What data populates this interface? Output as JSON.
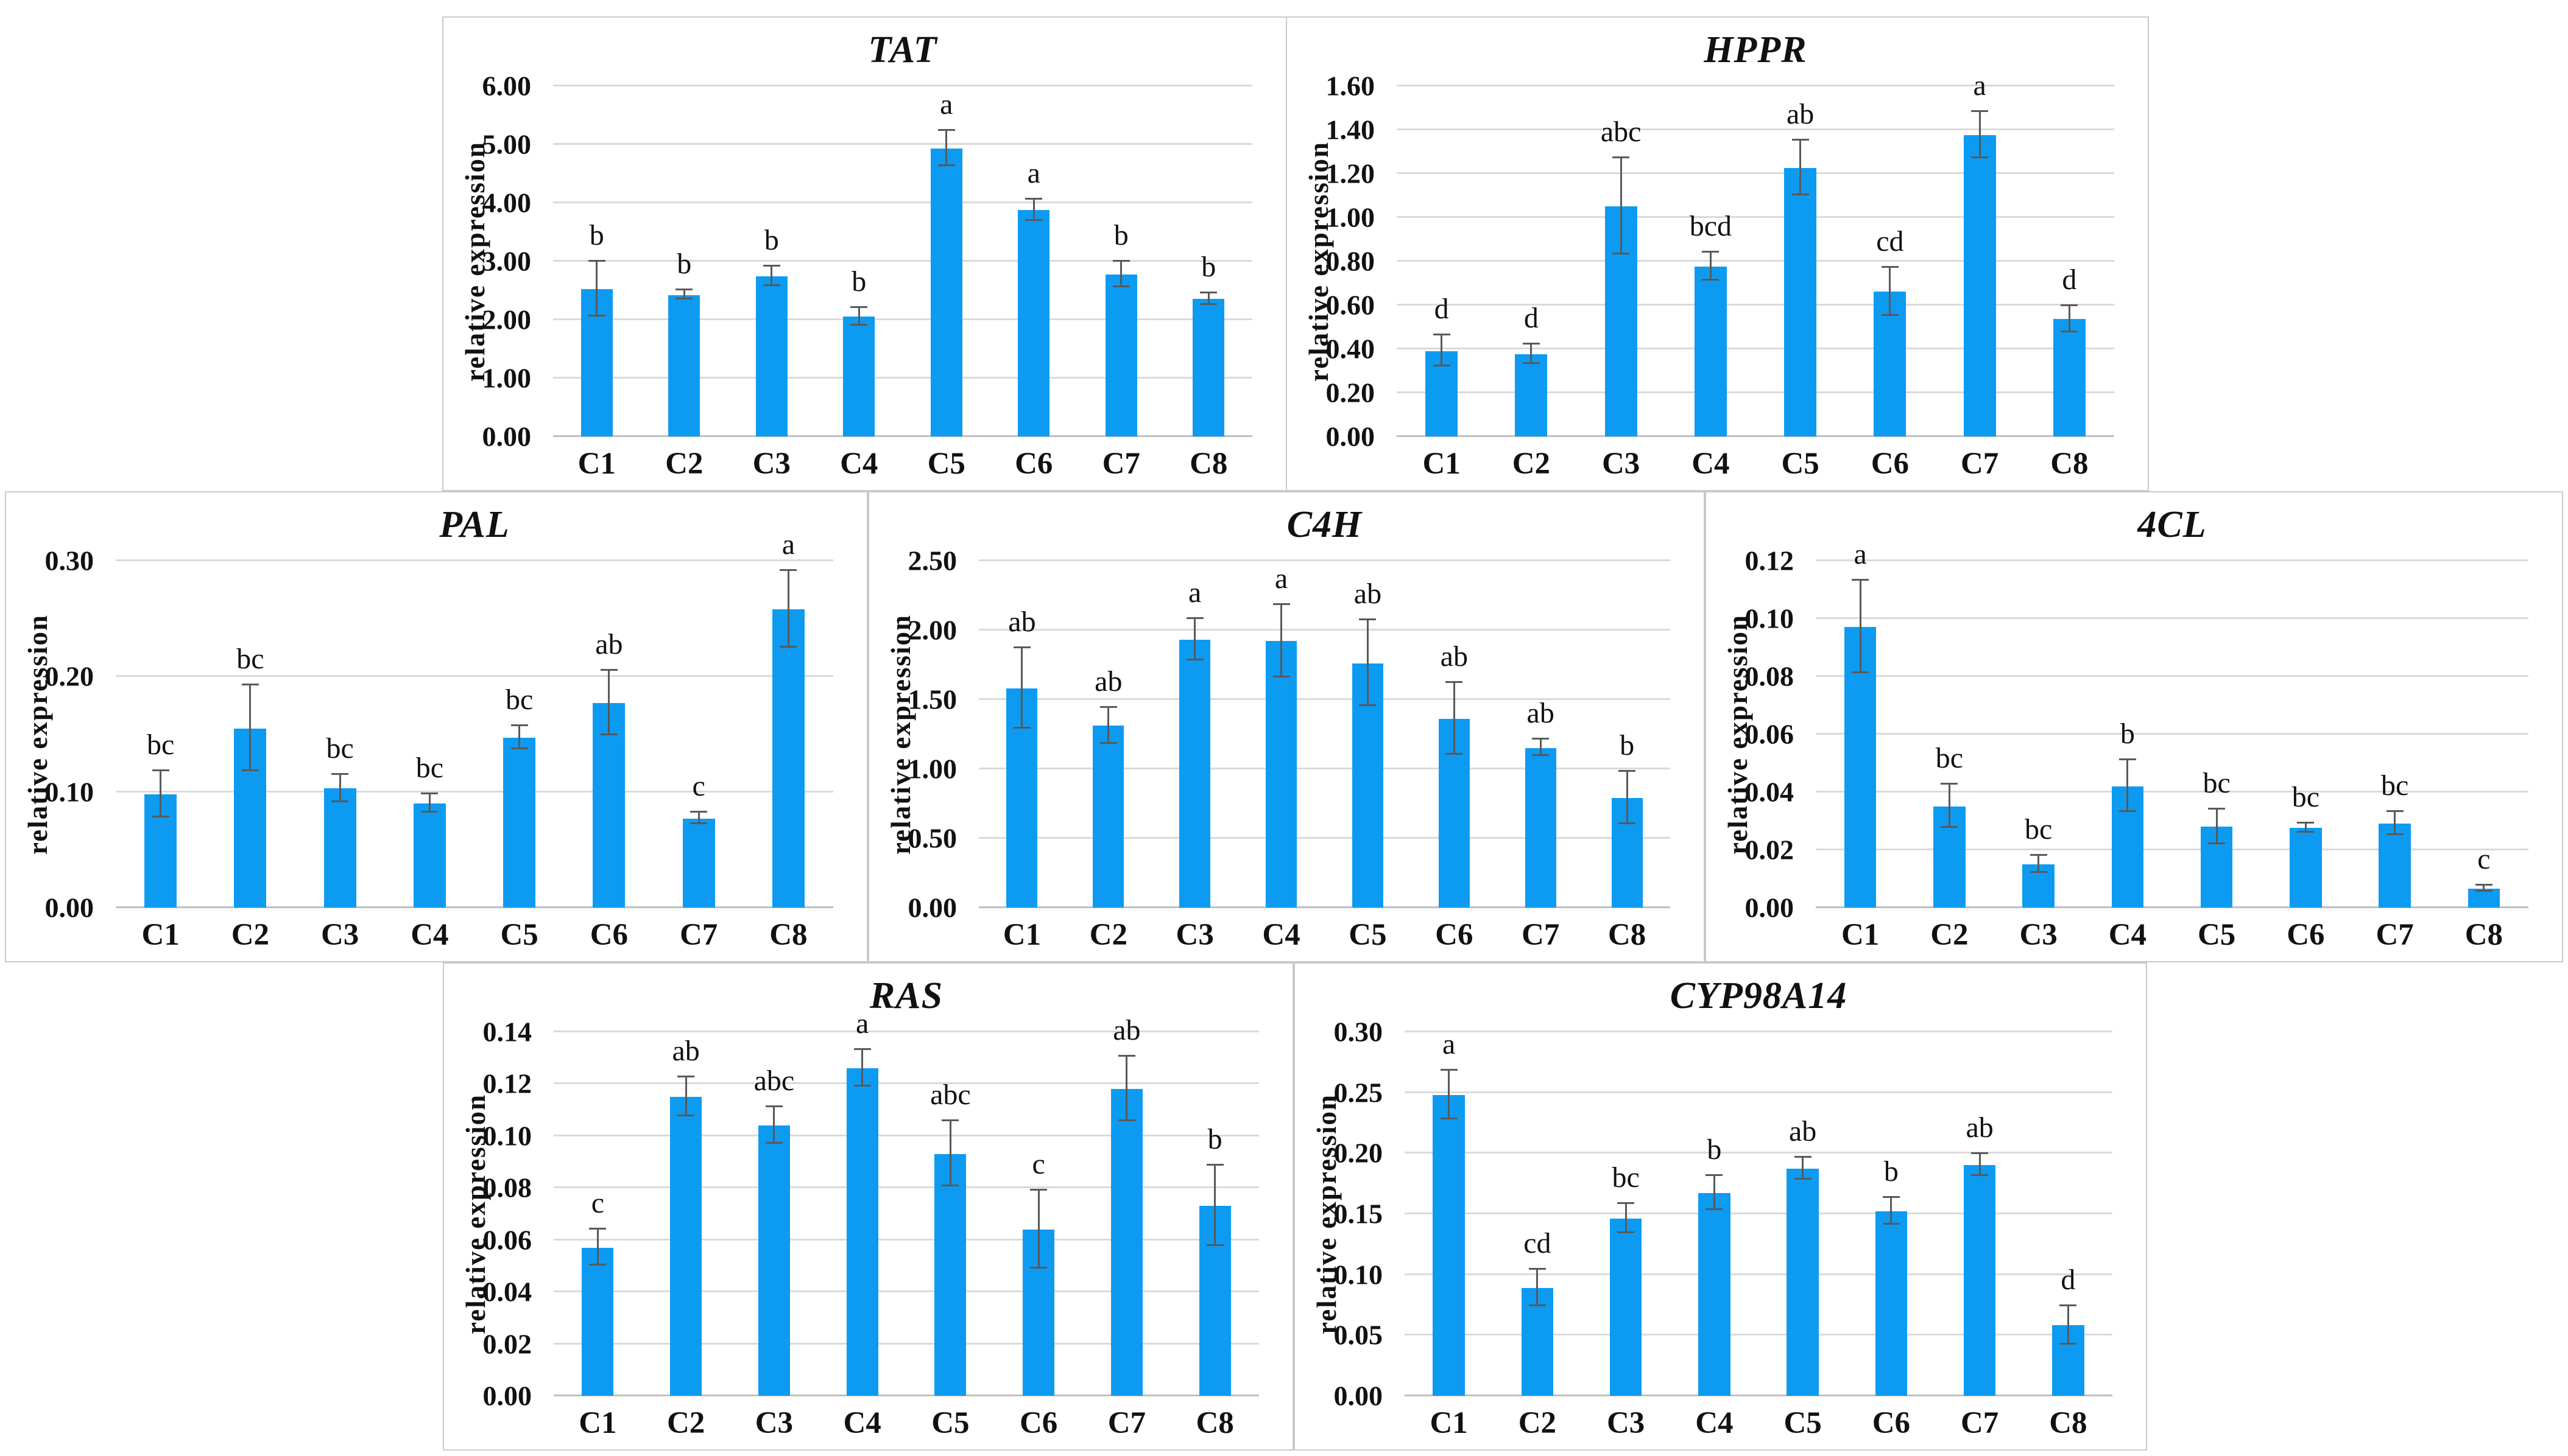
{
  "figure": {
    "background": "#ffffff",
    "bar_color": "#0d9bf2",
    "grid_color": "#dadada",
    "axis_color": "#bfbfbf",
    "error_color": "#595959",
    "panel_border_color": "#c9c9c9"
  },
  "chart_data": [
    {
      "type": "bar",
      "title": "TAT",
      "ylabel": "relative expression",
      "xlabel": "",
      "categories": [
        "C1",
        "C2",
        "C3",
        "C4",
        "C5",
        "C6",
        "C7",
        "C8"
      ],
      "values": [
        2.52,
        2.42,
        2.74,
        2.05,
        4.93,
        3.87,
        2.77,
        2.35
      ],
      "errors": [
        0.47,
        0.08,
        0.17,
        0.15,
        0.3,
        0.18,
        0.22,
        0.1
      ],
      "letters": [
        "b",
        "b",
        "b",
        "b",
        "a",
        "a",
        "b",
        "b"
      ],
      "ylim": [
        0,
        6.0
      ],
      "ytick_step": 1.0,
      "grid": true,
      "legend": "none"
    },
    {
      "type": "bar",
      "title": "HPPR",
      "ylabel": "relative expression",
      "xlabel": "",
      "categories": [
        "C1",
        "C2",
        "C3",
        "C4",
        "C5",
        "C6",
        "C7",
        "C8"
      ],
      "values": [
        0.39,
        0.375,
        1.05,
        0.775,
        1.225,
        0.66,
        1.375,
        0.535
      ],
      "errors": [
        0.07,
        0.045,
        0.22,
        0.065,
        0.125,
        0.11,
        0.105,
        0.06
      ],
      "letters": [
        "d",
        "d",
        "abc",
        "bcd",
        "ab",
        "cd",
        "a",
        "d"
      ],
      "ylim": [
        0,
        1.6
      ],
      "ytick_step": 0.2,
      "grid": true,
      "legend": "none"
    },
    {
      "type": "bar",
      "title": "PAL",
      "ylabel": "relative expression",
      "xlabel": "",
      "categories": [
        "C1",
        "C2",
        "C3",
        "C4",
        "C5",
        "C6",
        "C7",
        "C8"
      ],
      "values": [
        0.098,
        0.155,
        0.103,
        0.09,
        0.147,
        0.177,
        0.077,
        0.258
      ],
      "errors": [
        0.02,
        0.037,
        0.012,
        0.008,
        0.01,
        0.028,
        0.005,
        0.033
      ],
      "letters": [
        "bc",
        "bc",
        "bc",
        "bc",
        "bc",
        "ab",
        "c",
        "a"
      ],
      "ylim": [
        0,
        0.3
      ],
      "ytick_step": 0.1,
      "grid": true,
      "legend": "none"
    },
    {
      "type": "bar",
      "title": "C4H",
      "ylabel": "relative expression",
      "xlabel": "",
      "categories": [
        "C1",
        "C2",
        "C3",
        "C4",
        "C5",
        "C6",
        "C7",
        "C8"
      ],
      "values": [
        1.58,
        1.31,
        1.93,
        1.92,
        1.76,
        1.36,
        1.15,
        0.79
      ],
      "errors": [
        0.29,
        0.13,
        0.15,
        0.26,
        0.31,
        0.26,
        0.06,
        0.19
      ],
      "letters": [
        "ab",
        "ab",
        "a",
        "a",
        "ab",
        "ab",
        "ab",
        "b"
      ],
      "ylim": [
        0,
        2.5
      ],
      "ytick_step": 0.5,
      "grid": true,
      "legend": "none"
    },
    {
      "type": "bar",
      "title": "4CL",
      "ylabel": "relative expression",
      "xlabel": "",
      "categories": [
        "C1",
        "C2",
        "C3",
        "C4",
        "C5",
        "C6",
        "C7",
        "C8"
      ],
      "values": [
        0.097,
        0.035,
        0.015,
        0.042,
        0.028,
        0.0275,
        0.029,
        0.0065
      ],
      "errors": [
        0.016,
        0.0075,
        0.003,
        0.009,
        0.006,
        0.0015,
        0.004,
        0.001
      ],
      "letters": [
        "a",
        "bc",
        "bc",
        "b",
        "bc",
        "bc",
        "bc",
        "c"
      ],
      "ylim": [
        0,
        0.12
      ],
      "ytick_step": 0.02,
      "grid": true,
      "legend": "none"
    },
    {
      "type": "bar",
      "title": "RAS",
      "ylabel": "relative expression",
      "xlabel": "",
      "categories": [
        "C1",
        "C2",
        "C3",
        "C4",
        "C5",
        "C6",
        "C7",
        "C8"
      ],
      "values": [
        0.057,
        0.115,
        0.104,
        0.126,
        0.093,
        0.064,
        0.118,
        0.073
      ],
      "errors": [
        0.007,
        0.0075,
        0.007,
        0.007,
        0.0125,
        0.015,
        0.0125,
        0.0155
      ],
      "letters": [
        "c",
        "ab",
        "abc",
        "a",
        "abc",
        "c",
        "ab",
        "b"
      ],
      "ylim": [
        0,
        0.14
      ],
      "ytick_step": 0.02,
      "grid": true,
      "legend": "none"
    },
    {
      "type": "bar",
      "title": "CYP98A14",
      "ylabel": "relative expression",
      "xlabel": "",
      "categories": [
        "C1",
        "C2",
        "C3",
        "C4",
        "C5",
        "C6",
        "C7",
        "C8"
      ],
      "values": [
        0.248,
        0.089,
        0.146,
        0.167,
        0.187,
        0.152,
        0.19,
        0.058
      ],
      "errors": [
        0.02,
        0.015,
        0.012,
        0.014,
        0.009,
        0.011,
        0.009,
        0.016
      ],
      "letters": [
        "a",
        "cd",
        "bc",
        "b",
        "ab",
        "b",
        "ab",
        "d"
      ],
      "ylim": [
        0,
        0.3
      ],
      "ytick_step": 0.05,
      "grid": true,
      "legend": "none"
    }
  ]
}
